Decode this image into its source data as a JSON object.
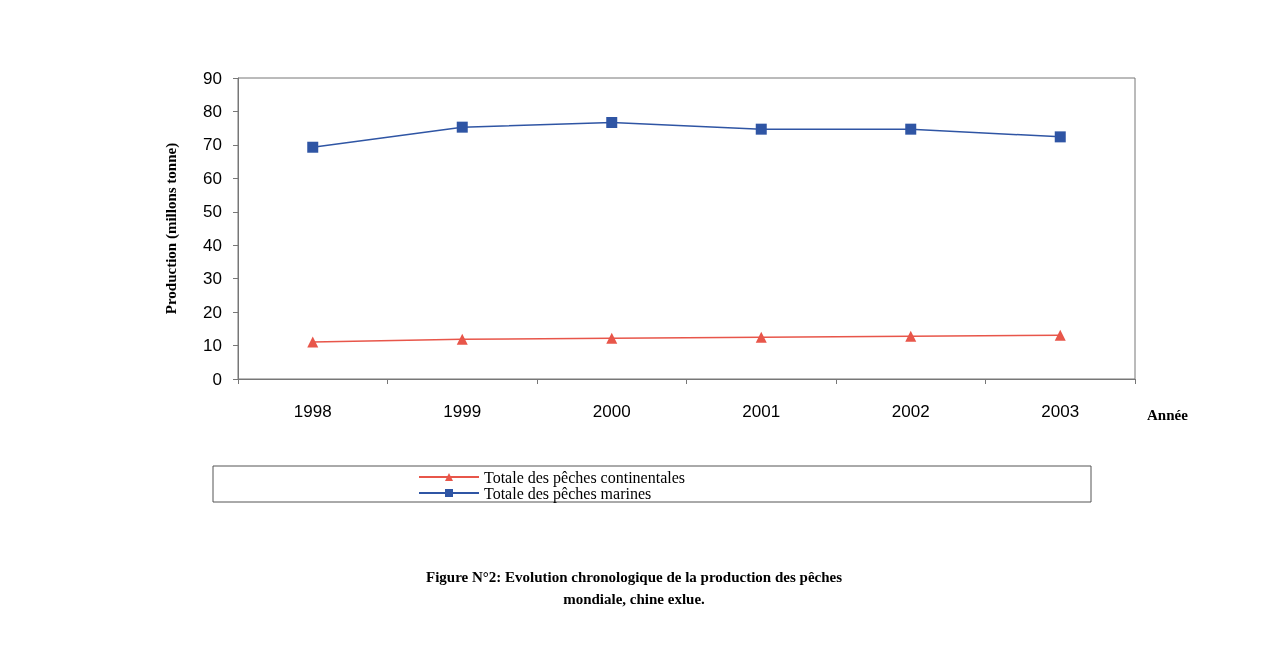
{
  "chart_data": {
    "type": "line",
    "title": "Figure N°2: Evolution chronologique de la production des pêches\nmondiale, chine exlue.",
    "xlabel": "Année",
    "ylabel": "Production (millons tonne)",
    "categories": [
      "1998",
      "1999",
      "2000",
      "2001",
      "2002",
      "2003"
    ],
    "series": [
      {
        "name": "Totale des pêches continentales",
        "color": "#e8564a",
        "marker": "triangle",
        "values": [
          11.1,
          11.9,
          12.2,
          12.5,
          12.8,
          13.1
        ]
      },
      {
        "name": "Totale des pêches marines",
        "color": "#2f55a4",
        "marker": "square",
        "values": [
          69.3,
          75.3,
          76.7,
          74.7,
          74.7,
          72.4
        ]
      }
    ],
    "ylim": [
      0,
      90
    ],
    "yticks": [
      0,
      10,
      20,
      30,
      40,
      50,
      60,
      70,
      80,
      90
    ],
    "grid": false,
    "legend": "bottom",
    "line_style": "solid"
  }
}
